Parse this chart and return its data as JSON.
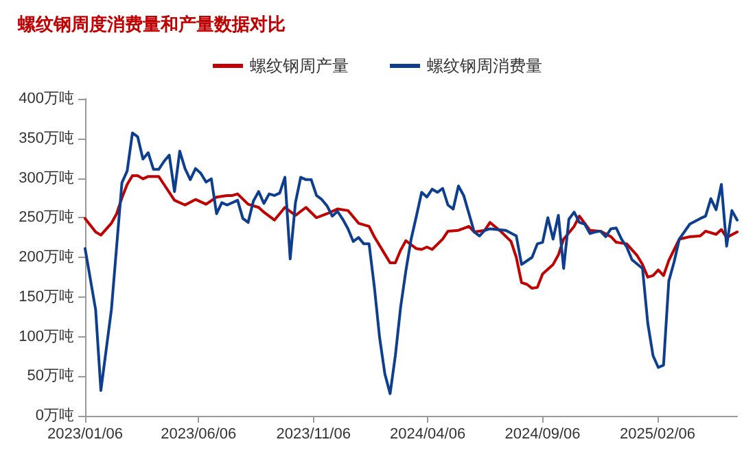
{
  "chart_data": {
    "type": "line",
    "title": "螺纹钢周度消费量和产量数据对比",
    "xlim": [
      "2023-01-06",
      "2025-05-23"
    ],
    "xticks": [
      {
        "value": "2023-01-06",
        "label": "2023/01/06"
      },
      {
        "value": "2023-06-06",
        "label": "2023/06/06"
      },
      {
        "value": "2023-11-06",
        "label": "2023/11/06"
      },
      {
        "value": "2024-04-06",
        "label": "2024/04/06"
      },
      {
        "value": "2024-09-06",
        "label": "2024/09/06"
      },
      {
        "value": "2025-02-06",
        "label": "2025/02/06"
      }
    ],
    "ylim": [
      0,
      400
    ],
    "yticks": [
      {
        "value": 0,
        "label": "0万吨"
      },
      {
        "value": 50,
        "label": "50万吨"
      },
      {
        "value": 100,
        "label": "100万吨"
      },
      {
        "value": 150,
        "label": "150万吨"
      },
      {
        "value": 200,
        "label": "200万吨"
      },
      {
        "value": 250,
        "label": "250万吨"
      },
      {
        "value": 300,
        "label": "300万吨"
      },
      {
        "value": 350,
        "label": "350万吨"
      },
      {
        "value": 400,
        "label": "400万吨"
      }
    ],
    "grid": false,
    "legend": "top",
    "marker": "none",
    "line_style": "solid",
    "series": [
      {
        "name": "螺纹钢周产量",
        "color": "#c00000",
        "x": [
          "2023-01-06",
          "2023-01-20",
          "2023-01-27",
          "2023-02-10",
          "2023-02-17",
          "2023-02-24",
          "2023-03-03",
          "2023-03-10",
          "2023-03-17",
          "2023-03-24",
          "2023-03-31",
          "2023-04-14",
          "2023-04-21",
          "2023-05-05",
          "2023-05-19",
          "2023-06-02",
          "2023-06-16",
          "2023-06-30",
          "2023-07-14",
          "2023-07-21",
          "2023-07-28",
          "2023-08-11",
          "2023-08-25",
          "2023-09-01",
          "2023-09-15",
          "2023-09-29",
          "2023-10-13",
          "2023-10-27",
          "2023-11-10",
          "2023-11-24",
          "2023-12-08",
          "2023-12-22",
          "2024-01-05",
          "2024-01-19",
          "2024-01-26",
          "2024-02-09",
          "2024-02-16",
          "2024-02-23",
          "2024-03-01",
          "2024-03-08",
          "2024-03-22",
          "2024-03-29",
          "2024-04-05",
          "2024-04-12",
          "2024-04-26",
          "2024-05-03",
          "2024-05-17",
          "2024-05-31",
          "2024-06-07",
          "2024-06-21",
          "2024-06-28",
          "2024-07-12",
          "2024-07-26",
          "2024-08-02",
          "2024-08-09",
          "2024-08-16",
          "2024-08-23",
          "2024-08-30",
          "2024-09-06",
          "2024-09-20",
          "2024-09-27",
          "2024-10-04",
          "2024-10-18",
          "2024-10-25",
          "2024-11-08",
          "2024-11-22",
          "2024-12-06",
          "2024-12-13",
          "2024-12-27",
          "2025-01-10",
          "2025-01-17",
          "2025-01-24",
          "2025-01-31",
          "2025-02-07",
          "2025-02-14",
          "2025-02-21",
          "2025-03-07",
          "2025-03-21",
          "2025-04-04",
          "2025-04-11",
          "2025-04-25",
          "2025-05-02",
          "2025-05-09",
          "2025-05-23"
        ],
        "values": [
          249,
          232,
          228,
          243,
          255,
          275,
          292,
          303,
          303,
          299,
          302,
          302,
          292,
          272,
          266,
          273,
          267,
          276,
          278,
          278,
          280,
          267,
          263,
          257,
          247,
          263,
          253,
          263,
          250,
          255,
          261,
          259,
          243,
          239,
          226,
          204,
          193,
          193,
          209,
          221,
          211,
          210,
          213,
          210,
          223,
          233,
          234,
          239,
          232,
          234,
          244,
          233,
          220,
          200,
          168,
          166,
          161,
          162,
          179,
          191,
          203,
          223,
          239,
          252,
          234,
          233,
          226,
          219,
          217,
          202,
          191,
          175,
          177,
          184,
          177,
          196,
          223,
          226,
          227,
          233,
          229,
          235,
          225,
          232
        ]
      },
      {
        "name": "螺纹钢周消费量",
        "color": "#0e3f8f",
        "x": [
          "2023-01-06",
          "2023-01-20",
          "2023-01-27",
          "2023-02-10",
          "2023-02-24",
          "2023-03-03",
          "2023-03-10",
          "2023-03-17",
          "2023-03-24",
          "2023-03-31",
          "2023-04-07",
          "2023-04-14",
          "2023-04-21",
          "2023-04-28",
          "2023-05-05",
          "2023-05-12",
          "2023-05-19",
          "2023-05-26",
          "2023-06-02",
          "2023-06-09",
          "2023-06-16",
          "2023-06-23",
          "2023-06-30",
          "2023-07-07",
          "2023-07-14",
          "2023-07-28",
          "2023-08-04",
          "2023-08-11",
          "2023-08-18",
          "2023-08-25",
          "2023-09-01",
          "2023-09-08",
          "2023-09-15",
          "2023-09-22",
          "2023-09-29",
          "2023-10-06",
          "2023-10-13",
          "2023-10-20",
          "2023-10-27",
          "2023-11-03",
          "2023-11-10",
          "2023-11-17",
          "2023-11-24",
          "2023-12-01",
          "2023-12-08",
          "2023-12-15",
          "2023-12-22",
          "2023-12-29",
          "2024-01-05",
          "2024-01-12",
          "2024-01-19",
          "2024-01-26",
          "2024-02-02",
          "2024-02-09",
          "2024-02-16",
          "2024-02-23",
          "2024-03-01",
          "2024-03-08",
          "2024-03-15",
          "2024-03-22",
          "2024-03-29",
          "2024-04-05",
          "2024-04-12",
          "2024-04-19",
          "2024-04-26",
          "2024-05-03",
          "2024-05-10",
          "2024-05-17",
          "2024-05-24",
          "2024-05-31",
          "2024-06-07",
          "2024-06-14",
          "2024-06-21",
          "2024-06-28",
          "2024-07-19",
          "2024-08-02",
          "2024-08-09",
          "2024-08-23",
          "2024-08-30",
          "2024-09-06",
          "2024-09-13",
          "2024-09-20",
          "2024-09-27",
          "2024-10-04",
          "2024-10-11",
          "2024-10-18",
          "2024-10-25",
          "2024-11-01",
          "2024-11-08",
          "2024-11-15",
          "2024-11-22",
          "2024-11-29",
          "2024-12-06",
          "2024-12-13",
          "2024-12-20",
          "2024-12-27",
          "2025-01-03",
          "2025-01-17",
          "2025-01-24",
          "2025-01-31",
          "2025-02-07",
          "2025-02-14",
          "2025-02-21",
          "2025-02-28",
          "2025-03-07",
          "2025-03-21",
          "2025-04-04",
          "2025-04-11",
          "2025-04-18",
          "2025-04-25",
          "2025-05-02",
          "2025-05-09",
          "2025-05-16",
          "2025-05-23"
        ],
        "values": [
          211,
          134,
          32,
          134,
          294,
          309,
          357,
          352,
          324,
          332,
          311,
          311,
          321,
          329,
          283,
          334,
          312,
          298,
          312,
          306,
          295,
          299,
          255,
          269,
          266,
          272,
          249,
          244,
          271,
          283,
          268,
          280,
          278,
          281,
          301,
          198,
          269,
          301,
          298,
          298,
          278,
          273,
          265,
          252,
          258,
          248,
          236,
          220,
          225,
          217,
          217,
          163,
          99,
          53,
          28,
          76,
          137,
          183,
          223,
          252,
          282,
          276,
          286,
          282,
          287,
          266,
          261,
          290,
          278,
          255,
          232,
          227,
          234,
          236,
          234,
          227,
          191,
          200,
          217,
          219,
          250,
          223,
          253,
          186,
          248,
          257,
          244,
          242,
          230,
          232,
          233,
          226,
          236,
          237,
          223,
          213,
          197,
          186,
          117,
          76,
          61,
          64,
          170,
          194,
          223,
          242,
          249,
          252,
          274,
          260,
          292,
          214,
          259,
          247
        ]
      }
    ]
  }
}
